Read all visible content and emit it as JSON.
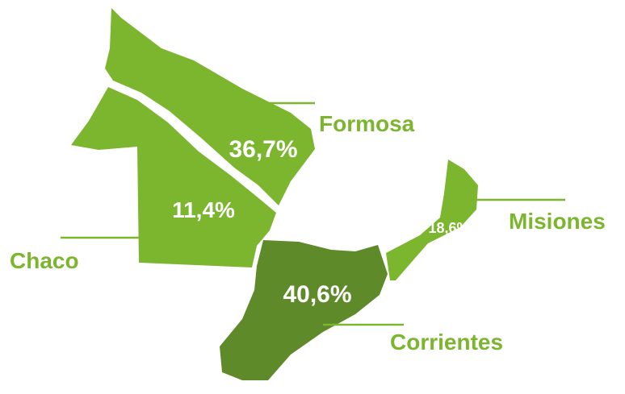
{
  "regions": [
    {
      "name": "Formosa",
      "label": "36,7%"
    },
    {
      "name": "Chaco",
      "label": "11,4%"
    },
    {
      "name": "Corrientes",
      "label": "40,6%"
    },
    {
      "name": "Misiones",
      "label": "18,6%"
    }
  ]
}
